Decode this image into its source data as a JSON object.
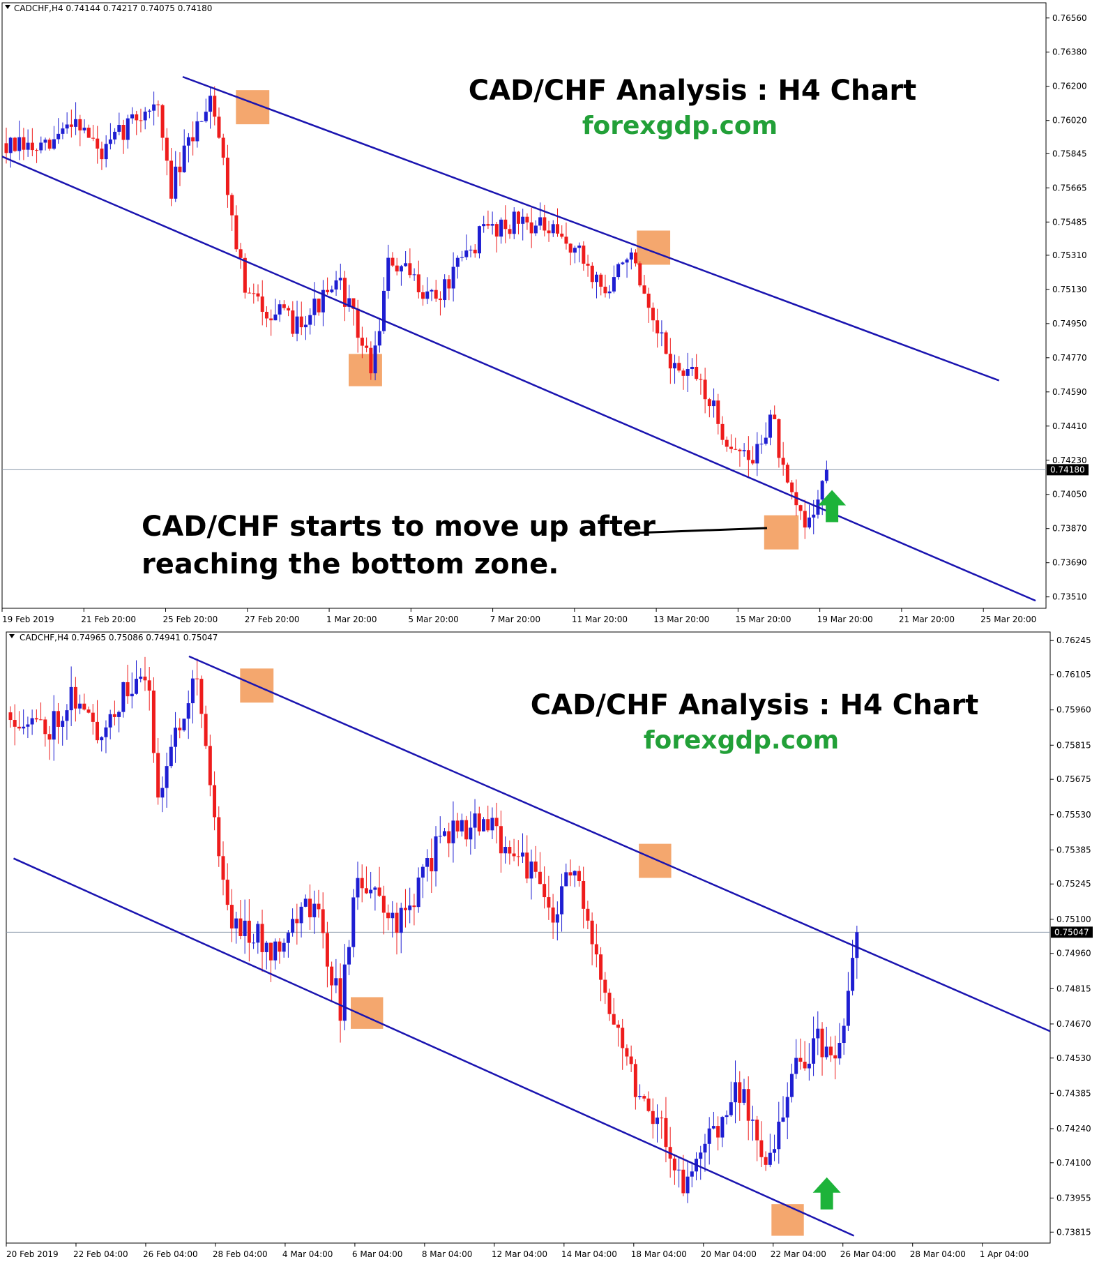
{
  "chart_data": [
    {
      "type": "candlestick",
      "header": "CADCHF,H4  0.74144 0.74217 0.74075 0.74180",
      "title": "CAD/CHF Analysis : H4 Chart",
      "subtitle": "forexgdp.com",
      "annotation": "CAD/CHF starts to move up after\nreaching the bottom zone.",
      "annotation_lines": [
        "CAD/CHF starts to move up after",
        "reaching the bottom zone."
      ],
      "current_price": "0.74180",
      "current_value": 0.7418,
      "y_ticks": [
        "0.76560",
        "0.76380",
        "0.76200",
        "0.76020",
        "0.75845",
        "0.75665",
        "0.75485",
        "0.75310",
        "0.75130",
        "0.74950",
        "0.74770",
        "0.74590",
        "0.74410",
        "0.74230",
        "0.74050",
        "0.73870",
        "0.73690",
        "0.73510"
      ],
      "ylim": [
        0.7345,
        0.7664
      ],
      "x_ticks": [
        "19 Feb 2019",
        "21 Feb 20:00",
        "25 Feb 20:00",
        "27 Feb 20:00",
        "1 Mar 20:00",
        "5 Mar 20:00",
        "7 Mar 20:00",
        "11 Mar 20:00",
        "13 Mar 20:00",
        "15 Mar 20:00",
        "19 Mar 20:00",
        "21 Mar 20:00",
        "25 Mar 20:00"
      ],
      "channel_lines": [
        {
          "x": [
            0.173,
            0.955
          ],
          "y": [
            0.7625,
            0.7465
          ]
        },
        {
          "x": [
            0.0,
            0.99
          ],
          "y": [
            0.7583,
            0.7349
          ]
        }
      ],
      "highlight_zones": [
        {
          "x": [
            0.224,
            0.256
          ],
          "y": [
            0.76,
            0.7618
          ]
        },
        {
          "x": [
            0.332,
            0.364
          ],
          "y": [
            0.7462,
            0.7479
          ]
        },
        {
          "x": [
            0.608,
            0.64
          ],
          "y": [
            0.7526,
            0.7544
          ]
        },
        {
          "x": [
            0.73,
            0.763
          ],
          "y": [
            0.7376,
            0.7394
          ]
        }
      ],
      "up_arrow": {
        "x": 0.795,
        "y": 0.7397
      },
      "candle_seed": 7,
      "candles": {
        "count": 190,
        "start": 0.759,
        "path": [
          [
            0,
            0.7588
          ],
          [
            12,
            0.7586
          ],
          [
            20,
            0.7605
          ],
          [
            28,
            0.7583
          ],
          [
            36,
            0.7601
          ],
          [
            44,
            0.7612
          ],
          [
            48,
            0.7565
          ],
          [
            60,
            0.7618
          ],
          [
            70,
            0.751
          ],
          [
            84,
            0.7495
          ],
          [
            98,
            0.7515
          ],
          [
            107,
            0.747
          ],
          [
            112,
            0.7528
          ],
          [
            126,
            0.7508
          ],
          [
            140,
            0.7545
          ],
          [
            152,
            0.755
          ],
          [
            166,
            0.7535
          ],
          [
            176,
            0.751
          ],
          [
            182,
            0.7535
          ],
          [
            188,
            0.7497
          ],
          [
            196,
            0.747
          ],
          [
            203,
            0.7465
          ],
          [
            210,
            0.7436
          ],
          [
            218,
            0.7421
          ],
          [
            224,
            0.7448
          ],
          [
            228,
            0.7408
          ],
          [
            234,
            0.7388
          ],
          [
            240,
            0.7418
          ]
        ]
      }
    },
    {
      "type": "candlestick",
      "header": "CADCHF,H4  0.74965 0.75086 0.74941 0.75047",
      "title": "CAD/CHF Analysis : H4 Chart",
      "subtitle": "forexgdp.com",
      "current_price": "0.75047",
      "current_value": 0.75047,
      "y_ticks": [
        "0.76245",
        "0.76105",
        "0.75960",
        "0.75815",
        "0.75675",
        "0.75530",
        "0.75385",
        "0.75245",
        "0.75100",
        "0.74960",
        "0.74815",
        "0.74670",
        "0.74530",
        "0.74385",
        "0.74240",
        "0.74100",
        "0.73955",
        "0.73815"
      ],
      "ylim": [
        0.7377,
        0.7628
      ],
      "x_ticks": [
        "20 Feb 2019",
        "22 Feb 04:00",
        "26 Feb 04:00",
        "28 Feb 04:00",
        "4 Mar 04:00",
        "6 Mar 04:00",
        "8 Mar 04:00",
        "12 Mar 04:00",
        "14 Mar 04:00",
        "18 Mar 04:00",
        "20 Mar 04:00",
        "22 Mar 04:00",
        "26 Mar 04:00",
        "28 Mar 04:00",
        "1 Apr 04:00"
      ],
      "current_price_label": "0.75047",
      "channel_lines": [
        {
          "x": [
            0.175,
            1.0
          ],
          "y": [
            0.7618,
            0.7464
          ]
        },
        {
          "x": [
            0.007,
            0.812
          ],
          "y": [
            0.7535,
            0.738
          ]
        }
      ],
      "highlight_zones": [
        {
          "x": [
            0.224,
            0.256
          ],
          "y": [
            0.7599,
            0.7613
          ]
        },
        {
          "x": [
            0.33,
            0.361
          ],
          "y": [
            0.7465,
            0.7478
          ]
        },
        {
          "x": [
            0.606,
            0.637
          ],
          "y": [
            0.7527,
            0.7541
          ]
        },
        {
          "x": [
            0.733,
            0.764
          ],
          "y": [
            0.738,
            0.7393
          ]
        }
      ],
      "up_arrow": {
        "x": 0.786,
        "y": 0.7396
      },
      "candle_seed": 11,
      "candles": {
        "count": 196,
        "start": 0.7595,
        "path": [
          [
            0,
            0.7595
          ],
          [
            12,
            0.7588
          ],
          [
            20,
            0.7603
          ],
          [
            28,
            0.7586
          ],
          [
            36,
            0.7601
          ],
          [
            44,
            0.761
          ],
          [
            48,
            0.7562
          ],
          [
            60,
            0.7614
          ],
          [
            70,
            0.7513
          ],
          [
            84,
            0.7498
          ],
          [
            98,
            0.7518
          ],
          [
            107,
            0.7473
          ],
          [
            112,
            0.7528
          ],
          [
            126,
            0.7508
          ],
          [
            140,
            0.7545
          ],
          [
            152,
            0.755
          ],
          [
            166,
            0.7535
          ],
          [
            176,
            0.751
          ],
          [
            182,
            0.7535
          ],
          [
            188,
            0.7497
          ],
          [
            196,
            0.747
          ],
          [
            203,
            0.744
          ],
          [
            210,
            0.7428
          ],
          [
            218,
            0.7398
          ],
          [
            226,
            0.742
          ],
          [
            236,
            0.744
          ],
          [
            246,
            0.7408
          ],
          [
            254,
            0.745
          ],
          [
            262,
            0.746
          ],
          [
            268,
            0.745
          ],
          [
            274,
            0.7503
          ]
        ]
      }
    }
  ],
  "colors": {
    "bull": "#1e1ed2",
    "bear": "#ee1c1c",
    "channel": "#1a14b0",
    "zone": "#f08a3e",
    "arrow": "#1db33a",
    "site": "#22a038",
    "price_line": "#8a98aa"
  }
}
